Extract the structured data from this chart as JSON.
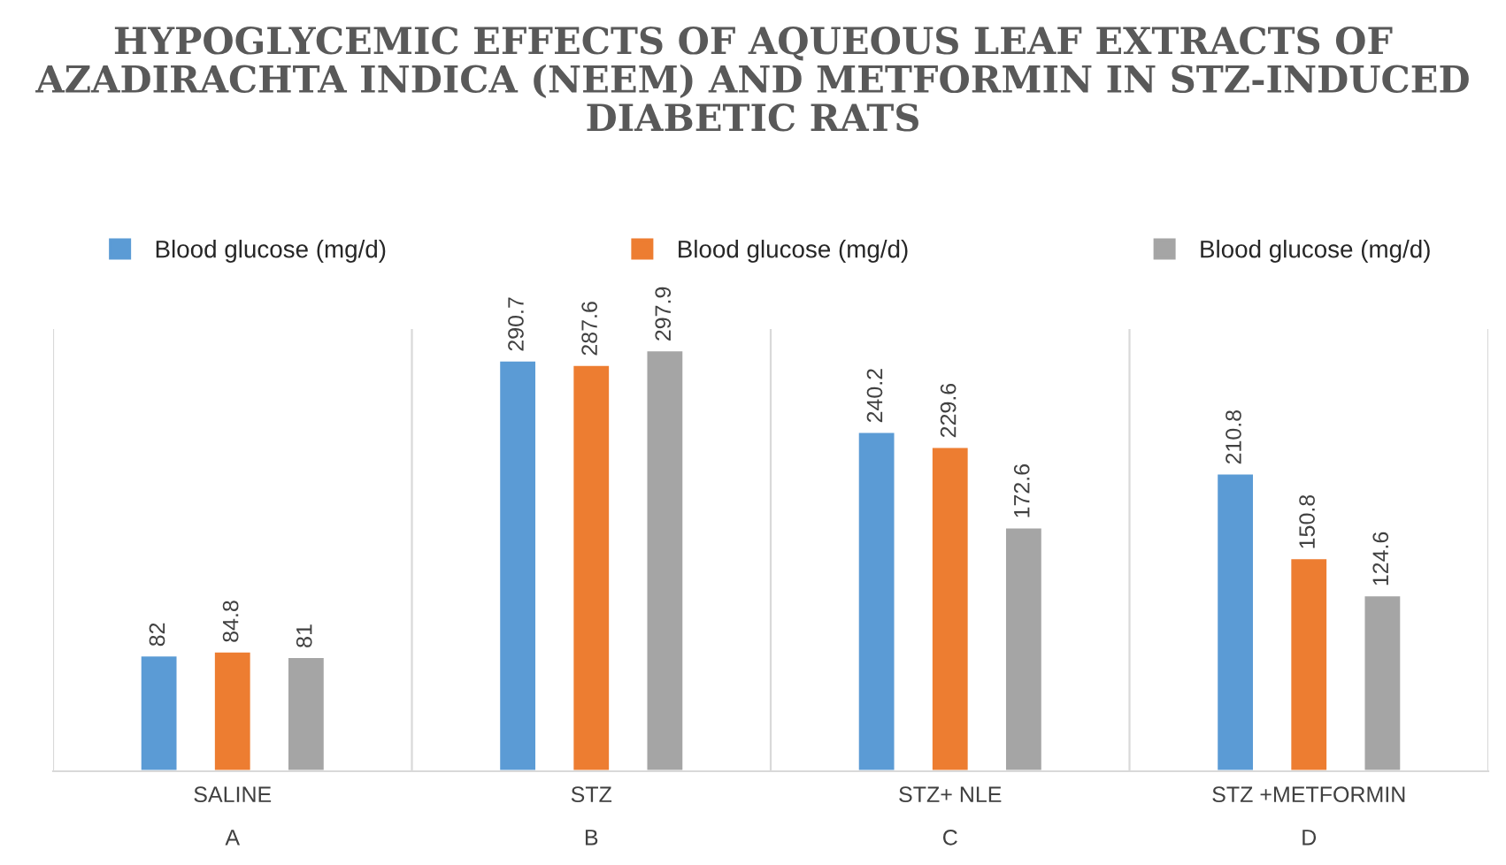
{
  "chart_data": {
    "type": "bar",
    "title": "HYPOGLYCEMIC EFFECTS OF AQUEOUS LEAF EXTRACTS OF AZADIRACHTA INDICA (NEEM) AND METFORMIN IN STZ-INDUCED DIABETIC RATS",
    "categories": [
      "SALINE\nA",
      "STZ\nB",
      "STZ+ NLE\nC",
      "STZ +METFORMIN\nD"
    ],
    "series": [
      {
        "name": "Blood glucose (mg/d)",
        "color": "#5b9bd5",
        "values": [
          82,
          290.7,
          240.2,
          210.8
        ]
      },
      {
        "name": "Blood glucose (mg/d)",
        "color": "#ed7d31",
        "values": [
          84.8,
          287.6,
          229.6,
          150.8
        ]
      },
      {
        "name": "Blood glucose (mg/d)",
        "color": "#a5a5a5",
        "values": [
          81,
          297.9,
          172.6,
          124.6
        ]
      }
    ],
    "data_labels": true,
    "grid": "x",
    "legend": "top"
  }
}
